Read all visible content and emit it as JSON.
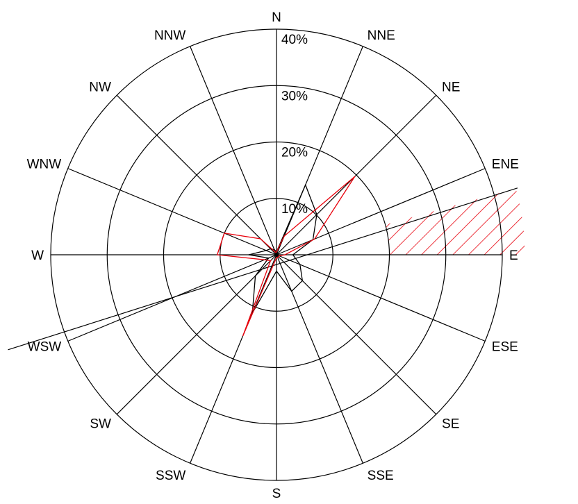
{
  "chart_data": {
    "type": "polar-line",
    "subtype": "wind-rose",
    "directions": [
      "N",
      "NNE",
      "NE",
      "ENE",
      "E",
      "ESE",
      "SE",
      "SSE",
      "S",
      "SSW",
      "SW",
      "WSW",
      "W",
      "WNW",
      "NW",
      "NNW"
    ],
    "rings": [
      {
        "value": 10,
        "label": "10%"
      },
      {
        "value": 20,
        "label": "20%"
      },
      {
        "value": 30,
        "label": "30%"
      },
      {
        "value": 40,
        "label": "40%"
      }
    ],
    "rmax": 40,
    "series": [
      {
        "color": "#000000",
        "values": [
          0.5,
          13.4,
          10.1,
          7.0,
          2.9,
          4.5,
          6.5,
          7.0,
          2.9,
          11.2,
          5.3,
          1.5,
          4.9,
          2.0,
          1.5,
          1.0
        ]
      },
      {
        "color": "#e8000b",
        "values": [
          0.5,
          3.6,
          19.6,
          7.3,
          1.5,
          0.5,
          0.5,
          0.5,
          0.5,
          15.5,
          1.5,
          2.3,
          10.5,
          10.0,
          4.0,
          0.5
        ]
      }
    ],
    "reference_line": {
      "bearing_from": 250.5,
      "bearing_to": 74.5
    },
    "hatched_sector": {
      "from_bearing": 74.5,
      "to_bearing": 90,
      "r_inner": 20,
      "r_outer": 44,
      "color": "#e8000b"
    },
    "grid": true
  }
}
